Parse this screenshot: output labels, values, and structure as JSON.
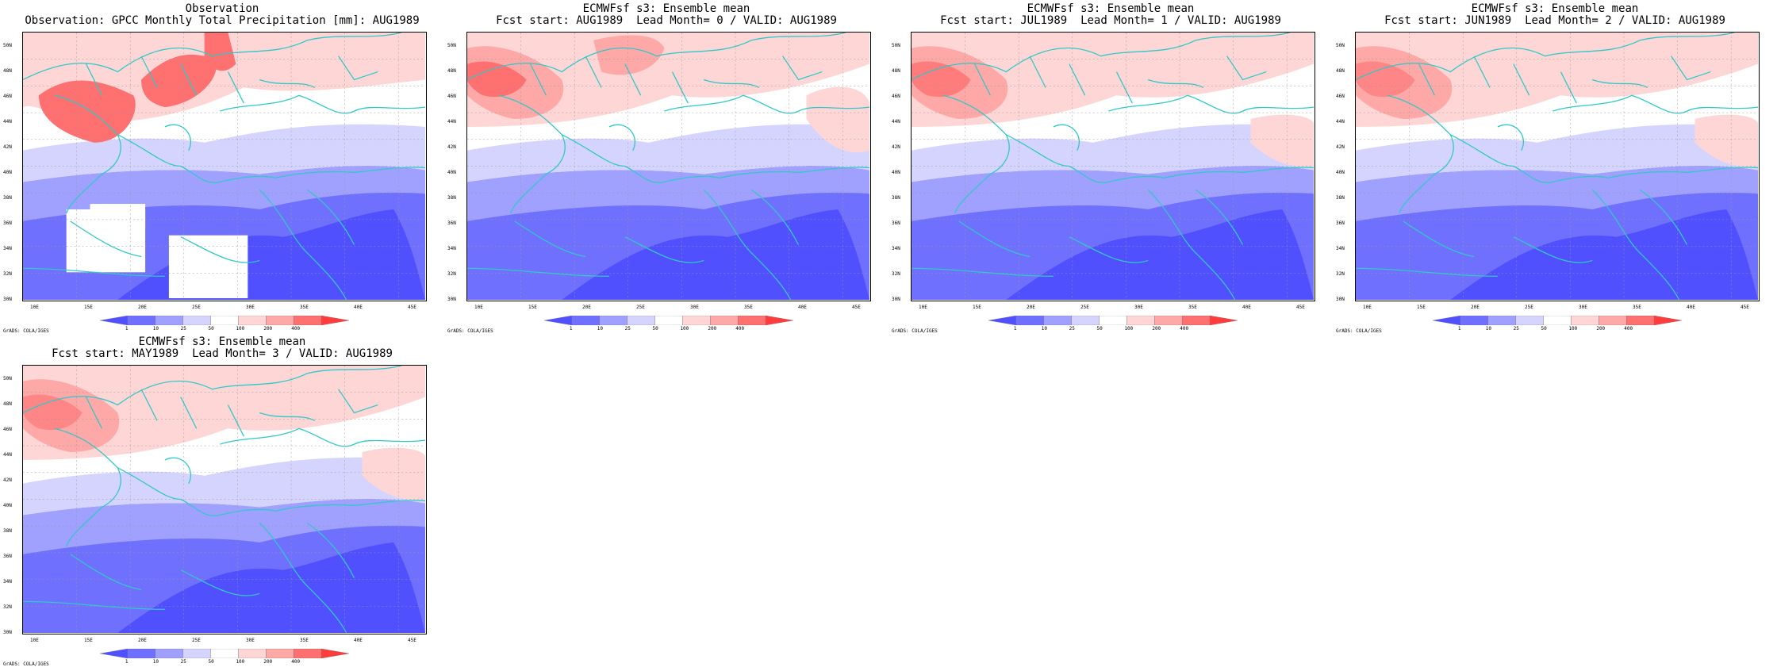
{
  "panels": [
    {
      "title_line1": "Observation",
      "title_line2": "Observation: GPCC Monthly Total Precipitation [mm]: AUG1989",
      "kind": "obs"
    },
    {
      "title_line1": "ECMWFsf s3: Ensemble mean",
      "title_line2": "Fcst start: AUG1989  Lead Month= 0 / VALID: AUG1989",
      "kind": "f0"
    },
    {
      "title_line1": "ECMWFsf s3: Ensemble mean",
      "title_line2": "Fcst start: JUL1989  Lead Month= 1 / VALID: AUG1989",
      "kind": "f1"
    },
    {
      "title_line1": "ECMWFsf s3: Ensemble mean",
      "title_line2": "Fcst start: JUN1989  Lead Month= 2 / VALID: AUG1989",
      "kind": "f2"
    },
    {
      "title_line1": "ECMWFsf s3: Ensemble mean",
      "title_line2": "Fcst start: MAY1989  Lead Month= 3 / VALID: AUG1989",
      "kind": "f3"
    }
  ],
  "lat_labels": [
    "50N",
    "48N",
    "46N",
    "44N",
    "42N",
    "40N",
    "38N",
    "36N",
    "34N",
    "32N",
    "30N"
  ],
  "lon_labels": [
    "10E",
    "15E",
    "20E",
    "25E",
    "30E",
    "35E",
    "40E",
    "45E"
  ],
  "colorbar_labels": [
    "1",
    "10",
    "25",
    "50",
    "100",
    "200",
    "400"
  ],
  "colorbar_colors": [
    "#5050ff",
    "#7070ff",
    "#a0a0ff",
    "#d4d4ff",
    "#ffffff",
    "#ffd6d6",
    "#ffa8a8",
    "#ff7070",
    "#ff3c3c"
  ],
  "credit": "GrADS: COLA/IGES"
}
